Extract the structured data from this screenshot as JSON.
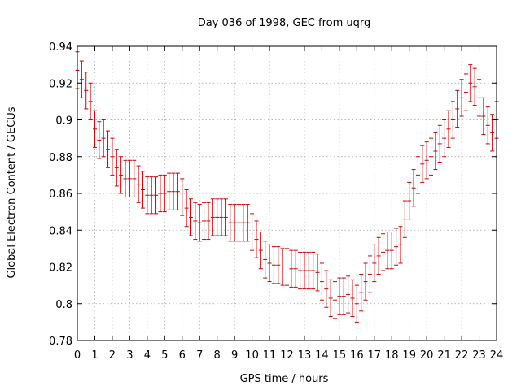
{
  "chart_data": {
    "type": "scatter",
    "title": "Day 036 of 1998, GEC from uqrg",
    "xlabel": "GPS time / hours",
    "ylabel": "Global Electron Content / GECUs",
    "xlim": [
      0,
      24
    ],
    "ylim": [
      0.78,
      0.94
    ],
    "x_ticks": [
      0,
      1,
      2,
      3,
      4,
      5,
      6,
      7,
      8,
      9,
      10,
      11,
      12,
      13,
      14,
      15,
      16,
      17,
      18,
      19,
      20,
      21,
      22,
      23,
      24
    ],
    "y_ticks": [
      0.78,
      0.8,
      0.82,
      0.84,
      0.86,
      0.88,
      0.9,
      0.92,
      0.94
    ],
    "y_tick_labels": [
      "0.78",
      "0.8",
      "0.82",
      "0.84",
      "0.86",
      "0.88",
      "0.9",
      "0.92",
      "0.94"
    ],
    "grid": true,
    "error_bar_halfwidth": 0.01,
    "series": [
      {
        "name": "GEC",
        "color": "#cc0000",
        "x": [
          0,
          0.25,
          0.5,
          0.75,
          1,
          1.25,
          1.5,
          1.75,
          2,
          2.25,
          2.5,
          2.75,
          3,
          3.25,
          3.5,
          3.75,
          4,
          4.25,
          4.5,
          4.75,
          5,
          5.25,
          5.5,
          5.75,
          6,
          6.25,
          6.5,
          6.75,
          7,
          7.25,
          7.5,
          7.75,
          8,
          8.25,
          8.5,
          8.75,
          9,
          9.25,
          9.5,
          9.75,
          10,
          10.25,
          10.5,
          10.75,
          11,
          11.25,
          11.5,
          11.75,
          12,
          12.25,
          12.5,
          12.75,
          13,
          13.25,
          13.5,
          13.75,
          14,
          14.25,
          14.5,
          14.75,
          15,
          15.25,
          15.5,
          15.75,
          16,
          16.25,
          16.5,
          16.75,
          17,
          17.25,
          17.5,
          17.75,
          18,
          18.25,
          18.5,
          18.75,
          19,
          19.25,
          19.5,
          19.75,
          20,
          20.25,
          20.5,
          20.75,
          21,
          21.25,
          21.5,
          21.75,
          22,
          22.25,
          22.5,
          22.75,
          23,
          23.25,
          23.5,
          23.75,
          24
        ],
        "values": [
          0.927,
          0.922,
          0.916,
          0.91,
          0.895,
          0.889,
          0.89,
          0.884,
          0.88,
          0.874,
          0.87,
          0.868,
          0.868,
          0.868,
          0.865,
          0.862,
          0.859,
          0.859,
          0.859,
          0.86,
          0.86,
          0.861,
          0.861,
          0.861,
          0.858,
          0.852,
          0.847,
          0.845,
          0.844,
          0.845,
          0.845,
          0.847,
          0.847,
          0.847,
          0.847,
          0.844,
          0.844,
          0.844,
          0.844,
          0.844,
          0.839,
          0.835,
          0.829,
          0.824,
          0.822,
          0.821,
          0.821,
          0.82,
          0.82,
          0.819,
          0.819,
          0.818,
          0.818,
          0.818,
          0.818,
          0.817,
          0.812,
          0.808,
          0.803,
          0.802,
          0.804,
          0.804,
          0.805,
          0.803,
          0.8,
          0.806,
          0.812,
          0.816,
          0.822,
          0.826,
          0.828,
          0.829,
          0.829,
          0.831,
          0.832,
          0.846,
          0.856,
          0.863,
          0.87,
          0.876,
          0.878,
          0.88,
          0.883,
          0.887,
          0.89,
          0.895,
          0.9,
          0.906,
          0.912,
          0.915,
          0.92,
          0.918,
          0.912,
          0.902,
          0.897,
          0.893,
          0.9
        ]
      }
    ]
  }
}
